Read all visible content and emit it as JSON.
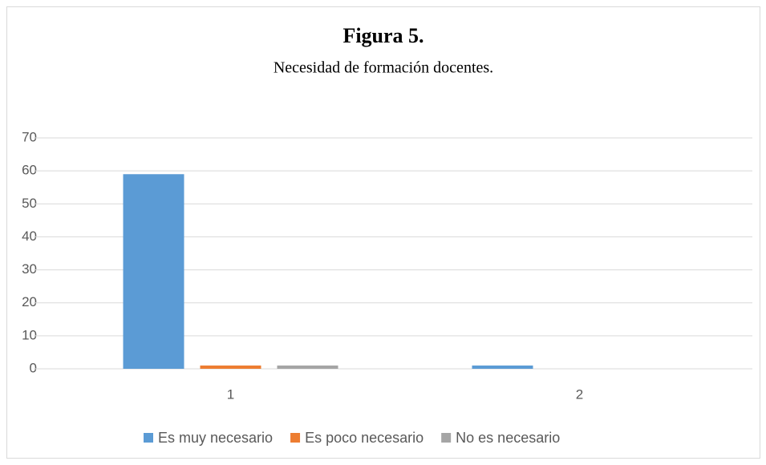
{
  "chart_data": {
    "type": "bar",
    "title": "Figura 5.",
    "subtitle": "Necesidad de formación docentes.",
    "categories": [
      "1",
      "2"
    ],
    "series": [
      {
        "name": "Es muy necesario",
        "color": "#5b9bd5",
        "values": [
          59,
          1
        ]
      },
      {
        "name": "Es poco necesario",
        "color": "#ed7d31",
        "values": [
          1,
          0
        ]
      },
      {
        "name": "No es necesario",
        "color": "#a5a5a5",
        "values": [
          1,
          0
        ]
      }
    ],
    "ylim": [
      0,
      70
    ],
    "yticks": [
      0,
      10,
      20,
      30,
      40,
      50,
      60,
      70
    ],
    "grid": true,
    "legend": "bottom"
  }
}
